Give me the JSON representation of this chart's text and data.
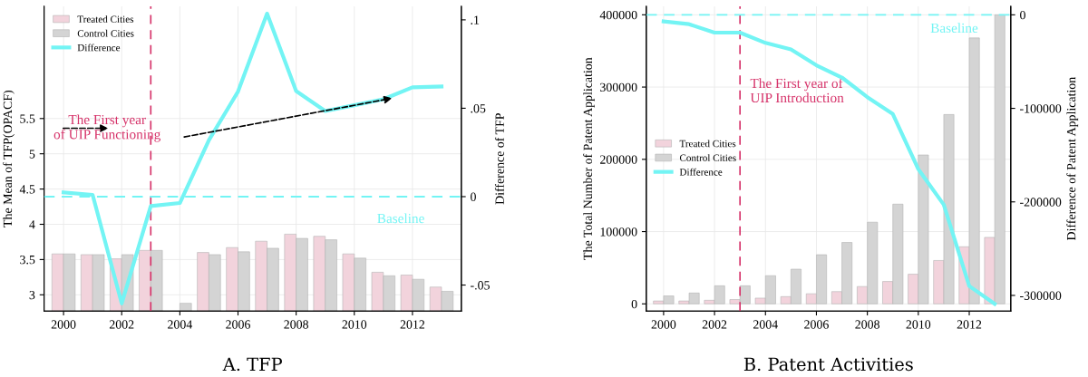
{
  "chart_data": [
    {
      "type": "bar",
      "title": "A. TFP",
      "ylabel": "The Mean of TFP(OPACF)",
      "y2label": "Difference of TFP",
      "x": [
        2000,
        2001,
        2002,
        2003,
        2004,
        2005,
        2006,
        2007,
        2008,
        2009,
        2010,
        2011,
        2012,
        2013
      ],
      "series": [
        {
          "name": "Treated Cities",
          "color": "#f2d3dc",
          "values": [
            3.58,
            3.57,
            3.51,
            3.63,
            null,
            3.6,
            3.67,
            3.76,
            3.86,
            3.83,
            3.58,
            3.32,
            3.28,
            3.11
          ]
        },
        {
          "name": "Control Cities",
          "color": "#d4d4d4",
          "values": [
            3.58,
            3.57,
            3.57,
            3.63,
            2.88,
            3.57,
            3.61,
            3.66,
            3.8,
            3.78,
            3.52,
            3.27,
            3.22,
            3.05
          ]
        },
        {
          "name": "Difference",
          "type": "line",
          "axis": "y2",
          "color": "#73f4f4",
          "values": [
            0.0024,
            0.001,
            -0.0604,
            -0.0053,
            -0.0036,
            0.032,
            0.0594,
            0.1035,
            0.0597,
            0.0484,
            0.0517,
            0.0551,
            0.0618,
            0.0623
          ]
        }
      ],
      "xlim": [
        1999.33,
        2013.68
      ],
      "xticks": [
        2000,
        2002,
        2004,
        2006,
        2008,
        2010,
        2012
      ],
      "ylim": [
        2.77,
        7.09
      ],
      "yticks": [
        3,
        3.5,
        4,
        4.5,
        5,
        5.5
      ],
      "y2lim": [
        -0.0647,
        0.1076
      ],
      "y2ticks": [
        {
          "value": -0.05,
          "label": "-.05"
        },
        0,
        {
          "value": 0.05,
          "label": ".05"
        },
        {
          "value": 0.1,
          "label": ".1"
        }
      ],
      "ref_lines": [
        {
          "axis": "x",
          "value": 2003,
          "label": "The First year\nof UIP Functioning",
          "color": "#d6336a",
          "line_style": "dashed"
        },
        {
          "axis": "y2",
          "value": 0,
          "label": "Baseline",
          "color": "#73f4f4",
          "line_style": "dashed"
        }
      ],
      "grid": true,
      "legend": "top left"
    },
    {
      "type": "bar",
      "title": "B. Patent Activities",
      "ylabel": "The Total Number of Patent Application",
      "y2label": "Difference of Patent Application",
      "x": [
        2000,
        2001,
        2002,
        2003,
        2004,
        2005,
        2006,
        2007,
        2008,
        2009,
        2010,
        2011,
        2012,
        2013
      ],
      "series": [
        {
          "name": "Treated Cities",
          "color": "#f2d3dc",
          "values": [
            4000,
            4000,
            5000,
            6000,
            8000,
            10000,
            14000,
            17000,
            24000,
            31000,
            41000,
            60000,
            79000,
            92000
          ]
        },
        {
          "name": "Control Cities",
          "color": "#d4d4d4",
          "values": [
            11000,
            15000,
            25000,
            25000,
            39000,
            48000,
            68000,
            85000,
            113000,
            138000,
            206000,
            262000,
            368000,
            400000
          ]
        },
        {
          "name": "Difference",
          "type": "line",
          "axis": "y2",
          "color": "#73f4f4",
          "values": [
            -7000,
            -10000,
            -19000,
            -19000,
            -30000,
            -37000,
            -54000,
            -67000,
            -88000,
            -106000,
            -165000,
            -203000,
            -290000,
            -309000
          ]
        }
      ],
      "xlim": [
        1999.32,
        2013.63
      ],
      "xticks": [
        2000,
        2002,
        2004,
        2006,
        2008,
        2010,
        2012
      ],
      "ylim": [
        -9900,
        411600
      ],
      "yticks": [
        0,
        100000,
        200000,
        300000,
        400000
      ],
      "y2lim": [
        -316700,
        9000
      ],
      "y2ticks": [
        -300000,
        -200000,
        -100000,
        0
      ],
      "ref_lines": [
        {
          "axis": "x",
          "value": 2003,
          "label": "The First year of\nUIP Introduction",
          "color": "#d6336a",
          "line_style": "dashed"
        },
        {
          "axis": "y2",
          "value": 0,
          "label": "Baseline",
          "color": "#73f4f4",
          "line_style": "dashed"
        }
      ],
      "grid": true,
      "legend": "center left"
    }
  ]
}
